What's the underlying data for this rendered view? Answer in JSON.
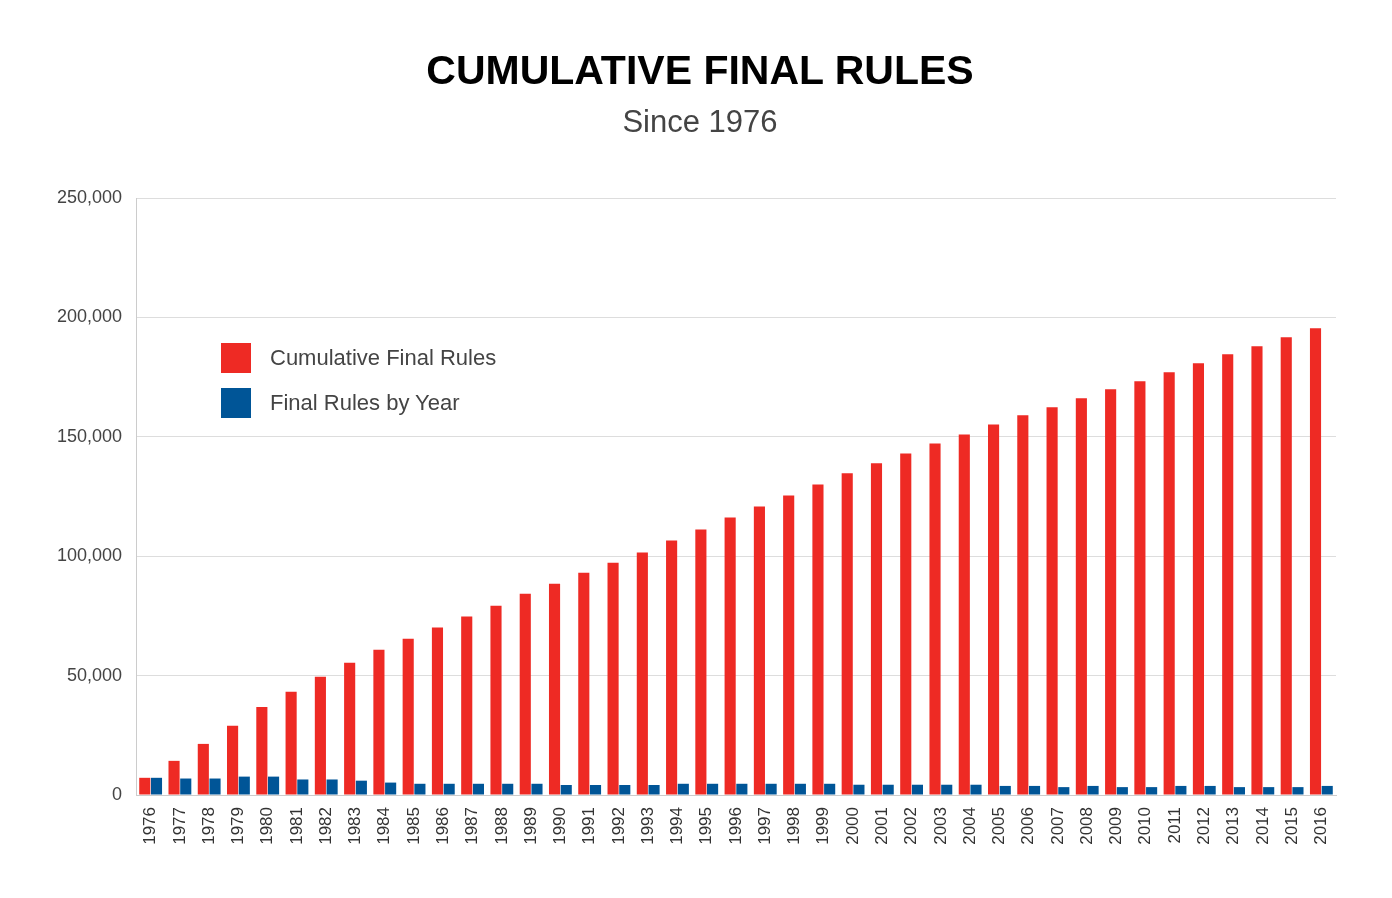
{
  "chart_data": {
    "type": "bar",
    "title": "CUMULATIVE FINAL RULES",
    "subtitle": "Since 1976",
    "categories": [
      "1976",
      "1977",
      "1978",
      "1979",
      "1980",
      "1981",
      "1982",
      "1983",
      "1984",
      "1985",
      "1986",
      "1987",
      "1988",
      "1989",
      "1990",
      "1991",
      "1992",
      "1993",
      "1994",
      "1995",
      "1996",
      "1997",
      "1998",
      "1999",
      "2000",
      "2001",
      "2002",
      "2003",
      "2004",
      "2005",
      "2006",
      "2007",
      "2008",
      "2009",
      "2010",
      "2011",
      "2012",
      "2013",
      "2014",
      "2015",
      "2016"
    ],
    "series": [
      {
        "name": "Cumulative Final Rules",
        "color": "#ee2a24",
        "values": [
          7200,
          14300,
          21400,
          29000,
          36900,
          43200,
          49500,
          55400,
          60800,
          65400,
          70100,
          74700,
          79300,
          84300,
          88500,
          93100,
          97300,
          101500,
          106600,
          111200,
          116200,
          120800,
          125400,
          130000,
          134700,
          138900,
          143000,
          147200,
          151000,
          155200,
          159000,
          162400,
          166100,
          169900,
          173300,
          177000,
          180800,
          184600,
          187900,
          191700,
          195500
        ]
      },
      {
        "name": "Final Rules by Year",
        "color": "#005597",
        "values": [
          7200,
          6900,
          6900,
          7700,
          7700,
          6500,
          6500,
          6000,
          5200,
          4700,
          4700,
          4700,
          4700,
          4700,
          4200,
          4200,
          4200,
          4200,
          4700,
          4700,
          4700,
          4700,
          4700,
          4700,
          4300,
          4300,
          4300,
          4300,
          4300,
          3800,
          3800,
          3300,
          3800,
          3300,
          3300,
          3800,
          3800,
          3300,
          3300,
          3300,
          3800
        ]
      }
    ],
    "ylim": [
      0,
      250000
    ],
    "yticks": [
      {
        "value": 0,
        "label": "0"
      },
      {
        "value": 50000,
        "label": "50,000"
      },
      {
        "value": 100000,
        "label": "100,000"
      },
      {
        "value": 150000,
        "label": "150,000"
      },
      {
        "value": 200000,
        "label": "200,000"
      },
      {
        "value": 250000,
        "label": "250,000"
      }
    ],
    "grid": "y",
    "legend": "top left"
  }
}
